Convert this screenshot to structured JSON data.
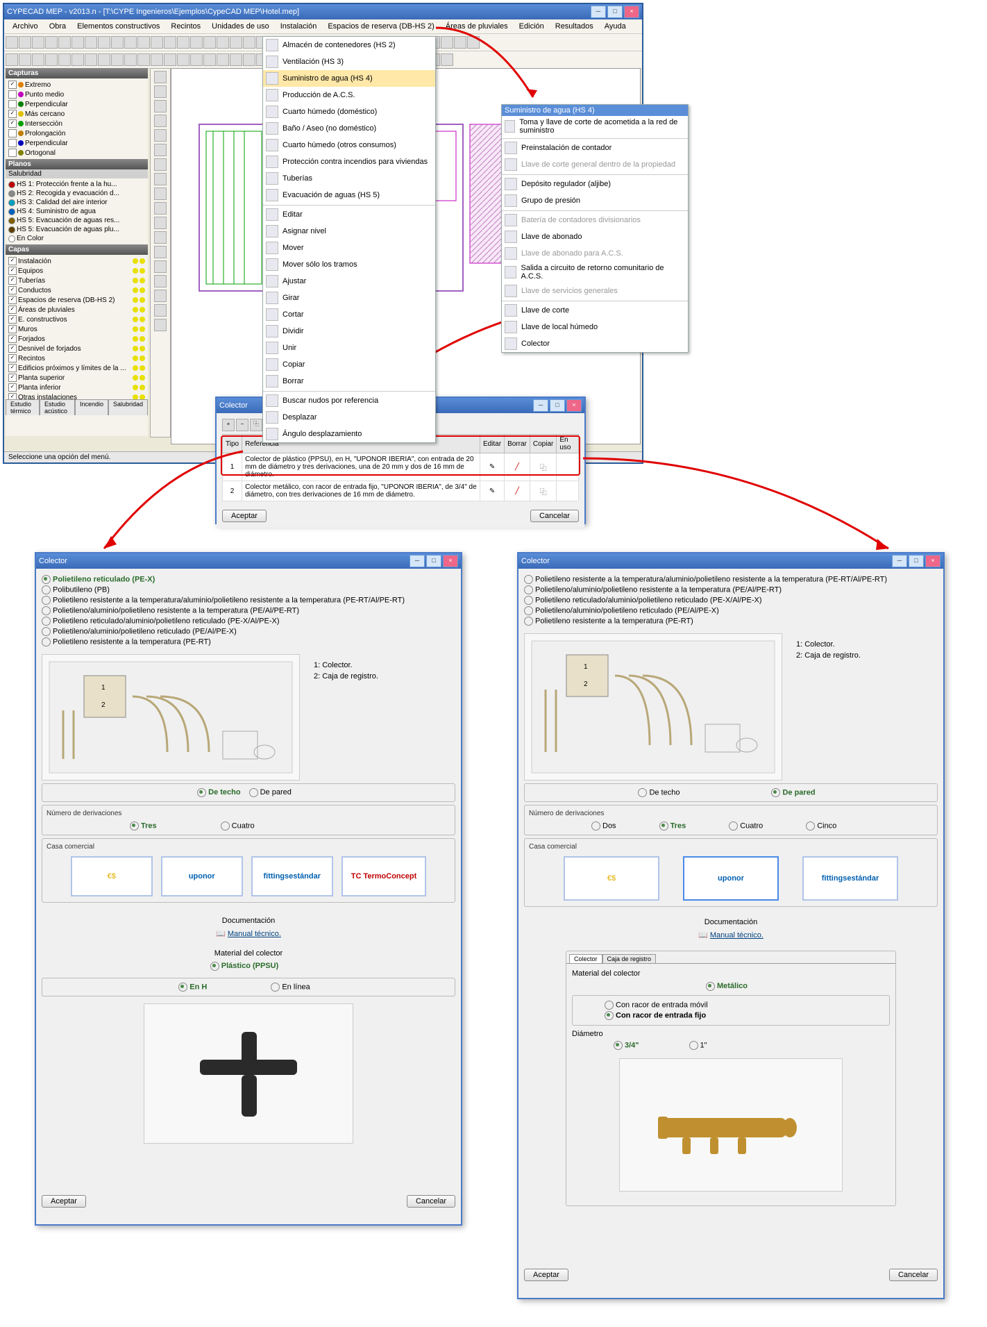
{
  "main": {
    "title": "CYPECAD MEP - v2013.n - [T:\\CYPE Ingenieros\\Ejemplos\\CypeCAD MEP\\Hotel.mep]",
    "menu": [
      "Archivo",
      "Obra",
      "Elementos constructivos",
      "Recintos",
      "Unidades de uso",
      "Instalación",
      "Espacios de reserva (DB-HS 2)",
      "Áreas de pluviales",
      "Edición",
      "Resultados",
      "Ayuda"
    ],
    "status": "Seleccione una opción del menú.",
    "tabs": [
      "Estudio térmico",
      "Estudio acústico",
      "Incendio",
      "Salubridad"
    ]
  },
  "capturas": {
    "hdr": "Capturas",
    "items": [
      {
        "c": "#e08000",
        "l": "Extremo",
        "chk": true
      },
      {
        "c": "#c000c0",
        "l": "Punto medio",
        "chk": false
      },
      {
        "c": "#008000",
        "l": "Perpendicular",
        "chk": false
      },
      {
        "c": "#e0c000",
        "l": "Más cercano",
        "chk": true
      },
      {
        "c": "#00a000",
        "l": "Intersección",
        "chk": true
      },
      {
        "c": "#c08000",
        "l": "Prolongación",
        "chk": false
      },
      {
        "c": "#0000c0",
        "l": "Perpendicular",
        "chk": false
      },
      {
        "c": "#808000",
        "l": "Ortogonal",
        "chk": false
      }
    ]
  },
  "planos": {
    "hdr": "Planos",
    "sub": "Salubridad",
    "items": [
      {
        "c": "#c00000",
        "l": "HS 1: Protección frente a la hu..."
      },
      {
        "c": "#888888",
        "l": "HS 2: Recogida y evacuación d..."
      },
      {
        "c": "#00a0c0",
        "l": "HS 3: Calidad del aire interior"
      },
      {
        "c": "#0060c0",
        "l": "HS 4: Suministro de agua"
      },
      {
        "c": "#806000",
        "l": "HS 5: Evacuación de aguas res..."
      },
      {
        "c": "#604000",
        "l": "HS 5: Evacuación de aguas plu..."
      },
      {
        "c": "",
        "l": "En Color"
      }
    ]
  },
  "capas": {
    "hdr": "Capas",
    "items": [
      "Instalación",
      "  Equipos",
      "  Tuberías",
      "  Conductos",
      "  Espacios de reserva (DB-HS 2)",
      "  Áreas de pluviales",
      "E. constructivos",
      "  Muros",
      "  Forjados",
      "  Desnivel de forjados",
      "  Recintos",
      "  Edificios próximos y límites de la ...",
      "Planta superior",
      "Planta inferior",
      "Otras instalaciones"
    ]
  },
  "menu1": {
    "items": [
      {
        "l": "Almacén de contenedores (HS 2)"
      },
      {
        "l": "Ventilación (HS 3)"
      },
      {
        "l": "Suministro de agua (HS 4)",
        "hl": true
      },
      {
        "l": "Producción de A.C.S."
      },
      {
        "l": "Cuarto húmedo (doméstico)"
      },
      {
        "l": "Baño / Aseo (no doméstico)"
      },
      {
        "l": "Cuarto húmedo (otros consumos)"
      },
      {
        "l": "Protección contra incendios para viviendas"
      },
      {
        "l": "Tuberías"
      },
      {
        "l": "Evacuación de aguas (HS 5)"
      },
      {
        "l": "Editar",
        "sep": true
      },
      {
        "l": "Asignar nivel"
      },
      {
        "l": "Mover"
      },
      {
        "l": "Mover sólo los tramos"
      },
      {
        "l": "Ajustar"
      },
      {
        "l": "Girar"
      },
      {
        "l": "Cortar"
      },
      {
        "l": "Dividir"
      },
      {
        "l": "Unir"
      },
      {
        "l": "Copiar"
      },
      {
        "l": "Borrar"
      },
      {
        "l": "Buscar nudos por referencia",
        "sep": true
      },
      {
        "l": "Desplazar"
      },
      {
        "l": "Ángulo desplazamiento"
      }
    ]
  },
  "menu2": {
    "hdr": "Suministro de agua (HS 4)",
    "items": [
      {
        "l": "Toma y llave de corte de acometida a la red de suministro"
      },
      {
        "l": "Preinstalación de contador",
        "sep": true
      },
      {
        "l": "Llave de corte general dentro de la propiedad",
        "dis": true
      },
      {
        "l": "Depósito regulador (aljibe)",
        "sep": true
      },
      {
        "l": "Grupo de presión"
      },
      {
        "l": "Batería de contadores divisionarios",
        "sep": true,
        "dis": true
      },
      {
        "l": "Llave de abonado"
      },
      {
        "l": "Llave de abonado para A.C.S.",
        "dis": true
      },
      {
        "l": "Salida a circuito de retorno comunitario de A.C.S."
      },
      {
        "l": "Llave de servicios generales",
        "dis": true
      },
      {
        "l": "Llave de corte",
        "sep": true
      },
      {
        "l": "Llave de local húmedo"
      },
      {
        "l": "Colector",
        "box": true
      }
    ]
  },
  "dlg1": {
    "title": "Colector",
    "cols": [
      "Tipo",
      "Referencia",
      "Editar",
      "Borrar",
      "Copiar",
      "En uso"
    ],
    "rows": [
      {
        "n": "1",
        "r": "Colector de plástico (PPSU), en H, \"UPONOR IBERIA\", con entrada de 20 mm de diámetro y tres derivaciones, una de 20 mm y dos de 16 mm de diámetro."
      },
      {
        "n": "2",
        "r": "Colector metálico, con racor de entrada fijo, \"UPONOR IBERIA\", de 3/4\" de diámetro, con tres derivaciones de 16 mm de diámetro."
      }
    ],
    "ok": "Aceptar",
    "cancel": "Cancelar"
  },
  "dlg2": {
    "title": "Colector",
    "mats": [
      {
        "l": "Polietileno reticulado (PE-X)",
        "sel": true
      },
      {
        "l": "Polibutileno (PB)"
      },
      {
        "l": "Polietileno resistente a la temperatura/aluminio/polietileno resistente a la temperatura (PE-RT/Al/PE-RT)"
      },
      {
        "l": "Polietileno/aluminio/polietileno resistente a la temperatura (PE/Al/PE-RT)"
      },
      {
        "l": "Polietileno reticulado/aluminio/polietileno reticulado (PE-X/Al/PE-X)"
      },
      {
        "l": "Polietileno/aluminio/polietileno reticulado (PE/Al/PE-X)"
      },
      {
        "l": "Polietileno resistente a la temperatura (PE-RT)"
      }
    ],
    "leg1": "1:  Colector.",
    "leg2": "2:  Caja de registro.",
    "pos_lbl": "",
    "pos": [
      {
        "l": "De techo",
        "sel": true
      },
      {
        "l": "De pared"
      }
    ],
    "deriv_lbl": "Número de derivaciones",
    "deriv": [
      {
        "l": "Tres",
        "sel": true
      },
      {
        "l": "Cuatro"
      }
    ],
    "casa_lbl": "Casa comercial",
    "brands": [
      {
        "l": "€$",
        "c": "#e8c030"
      },
      {
        "l": "uponor",
        "c": "#0060b0"
      },
      {
        "l": "fittingsestándar",
        "c": "#0060b0"
      },
      {
        "l": "TC TermoConcept",
        "c": "#c00000"
      }
    ],
    "doc_lbl": "Documentación",
    "doc": "Manual técnico.",
    "matcol_lbl": "Material del colector",
    "matcol": [
      {
        "l": "Plástico (PPSU)",
        "sel": true
      }
    ],
    "shape": [
      {
        "l": "En H",
        "sel": true
      },
      {
        "l": "En línea"
      }
    ],
    "ok": "Aceptar",
    "cancel": "Cancelar"
  },
  "dlg3": {
    "title": "Colector",
    "mats": [
      {
        "l": "Polietileno resistente a la temperatura/aluminio/polietileno resistente a la temperatura (PE-RT/Al/PE-RT)"
      },
      {
        "l": "Polietileno/aluminio/polietileno resistente a la temperatura (PE/Al/PE-RT)"
      },
      {
        "l": "Polietileno reticulado/aluminio/polietileno reticulado (PE-X/Al/PE-X)"
      },
      {
        "l": "Polietileno/aluminio/polietileno reticulado (PE/Al/PE-X)"
      },
      {
        "l": "Polietileno resistente a la temperatura (PE-RT)"
      }
    ],
    "leg1": "1:  Colector.",
    "leg2": "2:  Caja de registro.",
    "pos": [
      {
        "l": "De techo"
      },
      {
        "l": "De pared",
        "sel": true
      }
    ],
    "deriv_lbl": "Número de derivaciones",
    "deriv": [
      {
        "l": "Dos"
      },
      {
        "l": "Tres",
        "sel": true
      },
      {
        "l": "Cuatro"
      },
      {
        "l": "Cinco"
      }
    ],
    "casa_lbl": "Casa comercial",
    "brands": [
      {
        "l": "€$",
        "c": "#e8c030"
      },
      {
        "l": "uponor",
        "c": "#0060b0",
        "sel": true
      },
      {
        "l": "fittingsestándar",
        "c": "#0060b0"
      }
    ],
    "doc_lbl": "Documentación",
    "doc": "Manual técnico.",
    "tabs": [
      "Colector",
      "Caja de registro"
    ],
    "matcol_lbl": "Material del colector",
    "matcol": [
      {
        "l": "Metálico",
        "sel": true
      }
    ],
    "racor": [
      {
        "l": "Con racor de entrada móvil"
      },
      {
        "l": "Con racor de entrada fijo",
        "sel": true
      }
    ],
    "diam_lbl": "Diámetro",
    "diam": [
      {
        "l": "3/4\"",
        "sel": true
      },
      {
        "l": "1\""
      }
    ],
    "ok": "Aceptar",
    "cancel": "Cancelar"
  }
}
